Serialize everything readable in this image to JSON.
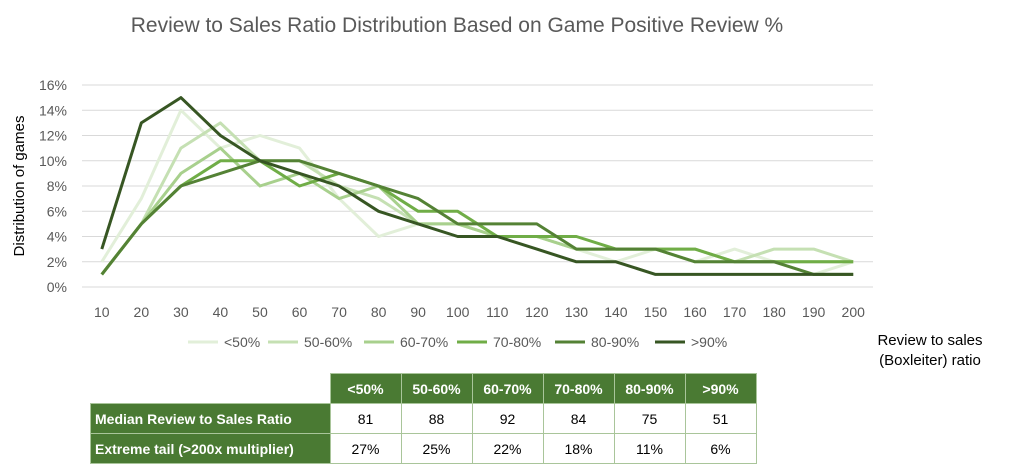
{
  "chart_data": {
    "type": "line",
    "title": "Review to Sales Ratio Distribution Based on Game Positive Review %",
    "xlabel": "Review to sales (Boxleiter) ratio",
    "ylabel": "Distribution of games",
    "x": [
      10,
      20,
      30,
      40,
      50,
      60,
      70,
      80,
      90,
      100,
      110,
      120,
      130,
      140,
      150,
      160,
      170,
      180,
      190,
      200
    ],
    "ylim": [
      0,
      0.16
    ],
    "yticks": [
      "0%",
      "2%",
      "4%",
      "6%",
      "8%",
      "10%",
      "12%",
      "14%",
      "16%"
    ],
    "xticks": [
      "10",
      "20",
      "30",
      "40",
      "50",
      "60",
      "70",
      "80",
      "90",
      "100",
      "110",
      "120",
      "130",
      "140",
      "150",
      "160",
      "170",
      "180",
      "190",
      "200"
    ],
    "grid": true,
    "legend_position": "bottom",
    "series": [
      {
        "name": "<50%",
        "color": "#e2efd9",
        "values": [
          0.02,
          0.07,
          0.14,
          0.11,
          0.12,
          0.11,
          0.07,
          0.04,
          0.05,
          0.05,
          0.04,
          0.04,
          0.03,
          0.02,
          0.03,
          0.02,
          0.03,
          0.02,
          0.01,
          0.02
        ]
      },
      {
        "name": "50-60%",
        "color": "#c5e0b3",
        "values": [
          0.01,
          0.05,
          0.11,
          0.13,
          0.1,
          0.1,
          0.08,
          0.07,
          0.05,
          0.05,
          0.04,
          0.04,
          0.03,
          0.03,
          0.03,
          0.02,
          0.02,
          0.03,
          0.03,
          0.02
        ]
      },
      {
        "name": "60-70%",
        "color": "#a8d08d",
        "values": [
          0.01,
          0.05,
          0.09,
          0.11,
          0.08,
          0.09,
          0.07,
          0.08,
          0.05,
          0.05,
          0.04,
          0.04,
          0.03,
          0.03,
          0.03,
          0.03,
          0.02,
          0.02,
          0.02,
          0.02
        ]
      },
      {
        "name": "70-80%",
        "color": "#70ad47",
        "values": [
          0.01,
          0.05,
          0.08,
          0.1,
          0.1,
          0.08,
          0.09,
          0.08,
          0.06,
          0.06,
          0.04,
          0.04,
          0.04,
          0.03,
          0.03,
          0.03,
          0.02,
          0.02,
          0.02,
          0.02
        ]
      },
      {
        "name": "80-90%",
        "color": "#548235",
        "values": [
          0.01,
          0.05,
          0.08,
          0.09,
          0.1,
          0.1,
          0.09,
          0.08,
          0.07,
          0.05,
          0.05,
          0.05,
          0.03,
          0.03,
          0.03,
          0.02,
          0.02,
          0.02,
          0.01,
          0.01
        ]
      },
      {
        "name": ">90%",
        "color": "#375623",
        "values": [
          0.03,
          0.13,
          0.15,
          0.12,
          0.1,
          0.09,
          0.08,
          0.06,
          0.05,
          0.04,
          0.04,
          0.03,
          0.02,
          0.02,
          0.01,
          0.01,
          0.01,
          0.01,
          0.01,
          0.01
        ]
      }
    ]
  },
  "table": {
    "headers": [
      "<50%",
      "50-60%",
      "60-70%",
      "70-80%",
      "80-90%",
      ">90%"
    ],
    "rows": [
      {
        "label": "Median Review to Sales Ratio",
        "values": [
          "81",
          "88",
          "92",
          "84",
          "75",
          "51"
        ]
      },
      {
        "label": "Extreme tail (>200x multiplier)",
        "values": [
          "27%",
          "25%",
          "22%",
          "18%",
          "11%",
          "6%"
        ]
      }
    ]
  }
}
